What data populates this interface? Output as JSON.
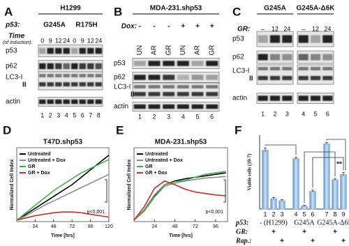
{
  "blots": [
    {
      "letter": "A",
      "cell_line": "H1299",
      "p53_label": "p53:",
      "mutants": [
        "G245A",
        "R175H"
      ],
      "time_label": "Time",
      "time_sub": "(of induction):",
      "lanes": [
        "0",
        "9",
        "12",
        "24",
        "0",
        "9",
        "12",
        "24"
      ],
      "rows": [
        {
          "label": "p53"
        },
        {
          "label": "p62"
        },
        {
          "label": "LC3-I",
          "sub": "II"
        },
        {
          "label": "actin"
        }
      ],
      "lane_numbers": [
        "1",
        "2",
        "3",
        "4",
        "5",
        "6",
        "7",
        "8"
      ]
    },
    {
      "letter": "B",
      "cell_line": "MDA-231.shp53",
      "dox_label": "Dox:",
      "dox": [
        "-",
        "-",
        "-",
        "+",
        "+",
        "+"
      ],
      "lanes": [
        "UN",
        "AR",
        "GR",
        "UN",
        "AR",
        "GR"
      ],
      "rows": [
        {
          "label": "p53"
        },
        {
          "label": "p62"
        },
        {
          "label": "LC3-I",
          "sub": "II"
        },
        {
          "label": "actin"
        }
      ],
      "lane_numbers": [
        "1",
        "2",
        "3",
        "4",
        "5",
        "6"
      ]
    },
    {
      "letter": "C",
      "groups": [
        "G245A",
        "G245A-Δ6K"
      ],
      "gr_label": "GR:",
      "lanes": [
        "–",
        "12",
        "24",
        "–",
        "12",
        "24"
      ],
      "rows": [
        {
          "label": "p53"
        },
        {
          "label": "p62"
        },
        {
          "label": "LC3-I",
          "sub": "II"
        },
        {
          "label": "actin"
        }
      ],
      "lane_numbers": [
        "1",
        "2",
        "3",
        "4",
        "5",
        "6"
      ]
    }
  ],
  "chart_data": [
    {
      "type": "line",
      "letter": "D",
      "title": "T47D.shp53",
      "x_label": "Time [hrs]",
      "y_label": "Normalized Cell Index",
      "x": [
        0,
        12,
        24,
        36,
        48,
        60,
        72,
        84,
        96,
        108,
        120
      ],
      "xlim": [
        0,
        120
      ],
      "xticks": [
        24,
        48,
        72,
        96,
        120
      ],
      "ylim": [
        0,
        1
      ],
      "legend": "upper left",
      "series": [
        {
          "name": "Untreated",
          "color": "#000000",
          "values": [
            0.02,
            0.1,
            0.18,
            0.26,
            0.34,
            0.42,
            0.5,
            0.6,
            0.7,
            0.8,
            0.9
          ]
        },
        {
          "name": "Untreated + Dox",
          "color": "#8c8c8c",
          "values": [
            0.02,
            0.08,
            0.15,
            0.22,
            0.28,
            0.34,
            0.4,
            0.46,
            0.52,
            0.58,
            0.64
          ]
        },
        {
          "name": "GR",
          "color": "#3cb34a",
          "values": [
            0.02,
            0.12,
            0.22,
            0.32,
            0.42,
            0.5,
            0.58,
            0.66,
            0.72,
            0.78,
            0.84
          ]
        },
        {
          "name": "GR + Dox",
          "color": "#d62728",
          "values": [
            0.02,
            0.05,
            0.08,
            0.1,
            0.12,
            0.13,
            0.13,
            0.12,
            0.1,
            0.08,
            0.06
          ]
        }
      ],
      "annotation": "p<0.001"
    },
    {
      "type": "line",
      "letter": "E",
      "title": "MDA-231.shp53",
      "x_label": "Time [hrs]",
      "y_label": "Normalized Cell Index",
      "x": [
        0,
        12,
        24,
        36,
        48,
        60,
        72,
        84,
        96,
        108
      ],
      "xlim": [
        0,
        110
      ],
      "xticks": [
        24,
        48,
        72,
        96
      ],
      "ylim": [
        0,
        1
      ],
      "legend": "upper left",
      "series": [
        {
          "name": "Untreated",
          "color": "#000000",
          "values": [
            0.02,
            0.15,
            0.35,
            0.5,
            0.55,
            0.58,
            0.6,
            0.62,
            0.64,
            0.66
          ]
        },
        {
          "name": "Untreated + Dox",
          "color": "#8c8c8c",
          "values": [
            0.02,
            0.14,
            0.33,
            0.48,
            0.52,
            0.55,
            0.57,
            0.59,
            0.6,
            0.61
          ]
        },
        {
          "name": "GR",
          "color": "#3cb34a",
          "values": [
            0.02,
            0.16,
            0.36,
            0.5,
            0.54,
            0.56,
            0.6,
            0.64,
            0.66,
            0.68
          ]
        },
        {
          "name": "GR + Dox",
          "color": "#d62728",
          "values": [
            0.02,
            0.2,
            0.45,
            0.55,
            0.5,
            0.44,
            0.4,
            0.38,
            0.36,
            0.35
          ]
        }
      ],
      "annotation": "p<0.001"
    },
    {
      "type": "bar",
      "letter": "F",
      "y_label": "Viable cells (10-7)",
      "categories": [
        "1",
        "2",
        "3",
        "4",
        "5",
        "6",
        "7",
        "8",
        "9"
      ],
      "values": [
        2.8,
        0.5,
        0.4,
        2.4,
        0.15,
        0.85,
        3.1,
        1.4,
        1.65
      ],
      "errors": [
        0.1,
        0.05,
        0.05,
        0.05,
        0.03,
        0.05,
        0.05,
        0.05,
        0.08
      ],
      "color": "#8bbbe8",
      "ylim": [
        0,
        3.5
      ],
      "annotation": "**",
      "rows": [
        {
          "label": "p53:",
          "groups": [
            "- (H1299)",
            "G245A",
            "G245A-Δ6K"
          ]
        },
        {
          "label": "GR:",
          "marks": [
            "+",
            "+",
            "+"
          ]
        },
        {
          "label": "Rap.:",
          "marks": [
            "+",
            "+",
            "+"
          ]
        }
      ]
    }
  ]
}
